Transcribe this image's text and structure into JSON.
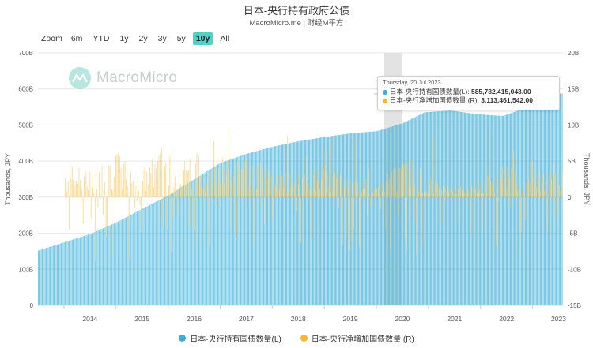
{
  "title": "日本-央行持有政府公债",
  "subtitle": "MacroMicro.me | 财经M平方",
  "watermark": "MacroMicro",
  "zoom": {
    "label": "Zoom",
    "options": [
      "6m",
      "YTD",
      "1y",
      "2y",
      "3y",
      "5y",
      "10y",
      "All"
    ],
    "active": "10y"
  },
  "tooltip": {
    "date": "Thursday, 20 Jul 2023",
    "rows": [
      {
        "label": "日本-央行持有国债数量(L):",
        "value": "585,782,415,043.00",
        "color": "#3aaed8"
      },
      {
        "label": "日本-央行净增加国债数量 (R):",
        "value": "3,113,461,542.00",
        "color": "#f5b731"
      }
    ]
  },
  "legend": [
    {
      "label": "日本-央行持有国债数量(L)",
      "color": "#3aaed8"
    },
    {
      "label": "日本-央行净增加国债数量 (R)",
      "color": "#f5b731"
    }
  ],
  "chart_data": {
    "type": "bar",
    "x_axis": {
      "type": "date",
      "range": [
        "2013-07",
        "2023-08"
      ],
      "ticks": [
        "2014",
        "2015",
        "2016",
        "2017",
        "2018",
        "2019",
        "2020",
        "2021",
        "2022",
        "2023"
      ]
    },
    "left_axis": {
      "label": "Thousands, JPY",
      "range": [
        0,
        700000000000
      ],
      "ticks": [
        "0",
        "100B",
        "200B",
        "300B",
        "400B",
        "500B",
        "600B",
        "700B"
      ]
    },
    "right_axis": {
      "label": "Thousands, JPY",
      "range": [
        -15000000000,
        20000000000
      ],
      "ticks": [
        "-15B",
        "-10B",
        "-5B",
        "0",
        "5B",
        "10B",
        "15B",
        "20B"
      ]
    },
    "grid": true,
    "legend_position": "bottom",
    "highlight_date": "2020-03",
    "series": [
      {
        "name": "日本-央行持有国债数量(L)",
        "axis": "left",
        "color": "#3aaed8",
        "unit": "billion JPY (thousands)",
        "anchors": [
          [
            "2013-07",
            152
          ],
          [
            "2014-01",
            175
          ],
          [
            "2014-07",
            198
          ],
          [
            "2015-01",
            230
          ],
          [
            "2015-07",
            268
          ],
          [
            "2016-01",
            305
          ],
          [
            "2016-07",
            350
          ],
          [
            "2017-01",
            395
          ],
          [
            "2017-07",
            420
          ],
          [
            "2018-01",
            440
          ],
          [
            "2018-07",
            455
          ],
          [
            "2019-01",
            467
          ],
          [
            "2019-07",
            477
          ],
          [
            "2020-01",
            483
          ],
          [
            "2020-07",
            505
          ],
          [
            "2020-12",
            535
          ],
          [
            "2021-06",
            540
          ],
          [
            "2021-12",
            530
          ],
          [
            "2022-06",
            525
          ],
          [
            "2022-12",
            550
          ],
          [
            "2023-03",
            575
          ],
          [
            "2023-07",
            586
          ]
        ]
      },
      {
        "name": "日本-央行净增加国债数量 (R)",
        "axis": "right",
        "color": "#f5b731",
        "unit": "billion JPY (thousands)",
        "anchors": [
          [
            "2014-01",
            3
          ],
          [
            "2014-07",
            2.5
          ],
          [
            "2015-01",
            4
          ],
          [
            "2015-07",
            2.5
          ],
          [
            "2016-01",
            5
          ],
          [
            "2016-07",
            4
          ],
          [
            "2017-01",
            3
          ],
          [
            "2017-07",
            3.5
          ],
          [
            "2018-01",
            2.5
          ],
          [
            "2018-07",
            2
          ],
          [
            "2019-01",
            3
          ],
          [
            "2019-07",
            1.5
          ],
          [
            "2020-01",
            1
          ],
          [
            "2020-07",
            4
          ],
          [
            "2021-01",
            2
          ],
          [
            "2021-07",
            1
          ],
          [
            "2022-01",
            2
          ],
          [
            "2022-07",
            3
          ],
          [
            "2023-01",
            2
          ],
          [
            "2023-07",
            3.1
          ]
        ]
      }
    ]
  }
}
